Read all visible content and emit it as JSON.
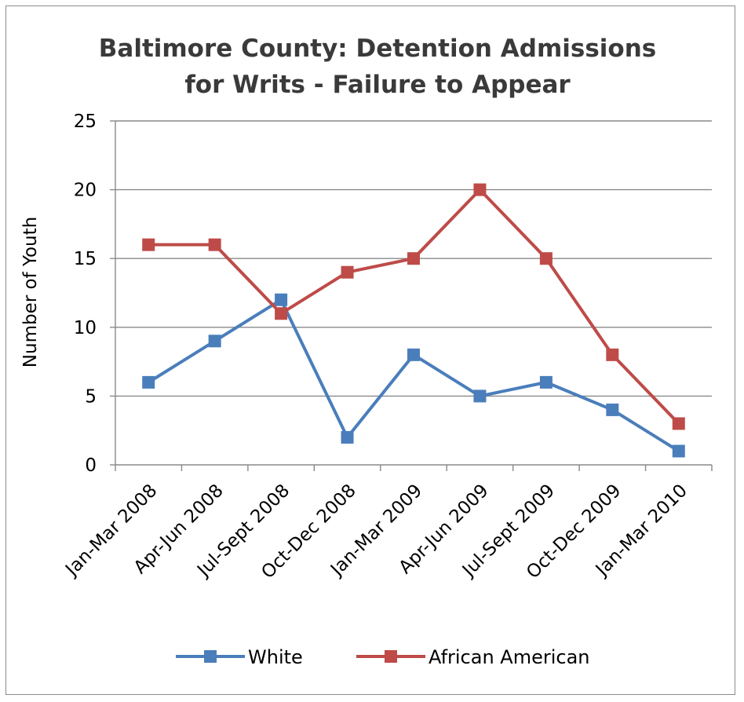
{
  "chart_data": {
    "type": "line",
    "title_lines": [
      "Baltimore County: Detention Admissions",
      "for Writs - Failure to Appear"
    ],
    "xlabel": "",
    "ylabel": "Number of Youth",
    "ylim": [
      0,
      25
    ],
    "yticks": [
      0,
      5,
      10,
      15,
      20,
      25
    ],
    "grid": true,
    "legend_position": "bottom",
    "categories": [
      "Jan-Mar 2008",
      "Apr-Jun 2008",
      "Jul-Sept 2008",
      "Oct-Dec 2008",
      "Jan-Mar 2009",
      "Apr-Jun 2009",
      "Jul-Sept 2009",
      "Oct-Dec 2009",
      "Jan-Mar 2010"
    ],
    "series": [
      {
        "name": "White",
        "color": "#4a7ebb",
        "values": [
          6,
          9,
          12,
          2,
          8,
          5,
          6,
          4,
          1
        ]
      },
      {
        "name": "African American",
        "color": "#be4b48",
        "values": [
          16,
          16,
          11,
          14,
          15,
          20,
          15,
          8,
          3
        ]
      }
    ]
  }
}
